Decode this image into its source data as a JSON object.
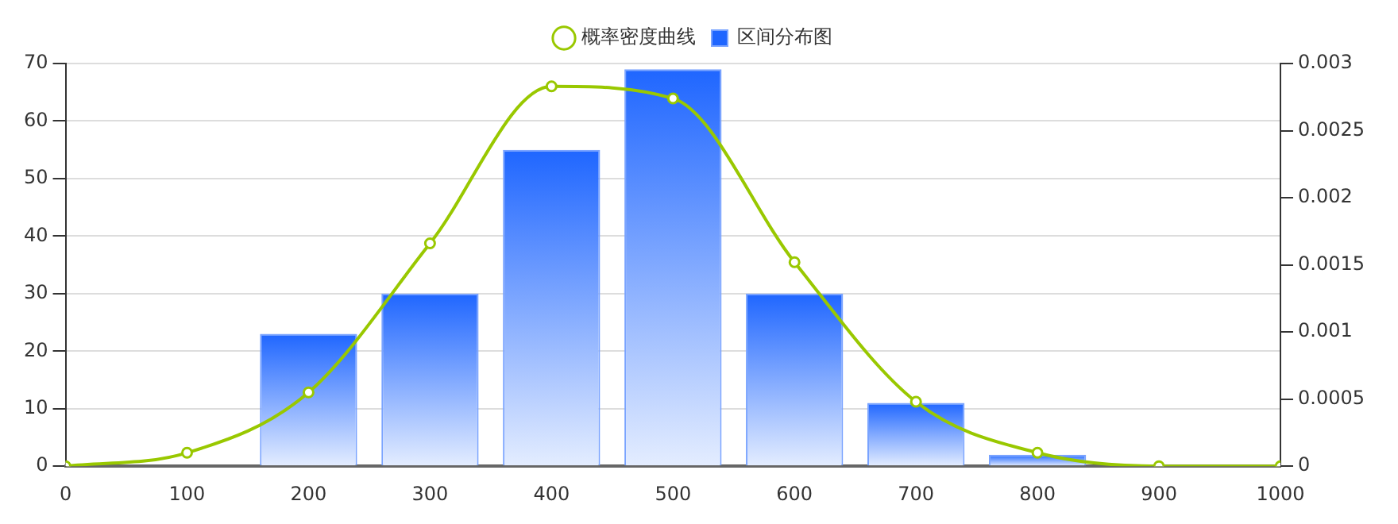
{
  "chart_data": {
    "type": "bar",
    "xlim": [
      0,
      1000
    ],
    "xticks": [
      0,
      100,
      200,
      300,
      400,
      500,
      600,
      700,
      800,
      900,
      1000
    ],
    "ylim": [
      0,
      70
    ],
    "yticks": [
      0,
      10,
      20,
      30,
      40,
      50,
      60,
      70
    ],
    "y2lim": [
      0,
      0.003
    ],
    "y2ticks": [
      0,
      0.0005,
      0.001,
      0.0015,
      0.002,
      0.0025,
      0.003
    ],
    "grid": "y",
    "legend": "top",
    "series": [
      {
        "name": "概率密度曲线",
        "type": "line",
        "axis": "y2",
        "color": "#99c800",
        "marker": "circle",
        "x": [
          0,
          100,
          200,
          300,
          400,
          500,
          600,
          700,
          800,
          900,
          1000
        ],
        "values": [
          0,
          0.0001,
          0.00055,
          0.00166,
          0.00283,
          0.00274,
          0.00152,
          0.00048,
          0.0001,
          0,
          0
        ]
      },
      {
        "name": "区间分布图",
        "color": "#1f66ff",
        "x": [
          200,
          300,
          400,
          500,
          600,
          700,
          800
        ],
        "values": [
          23,
          30,
          55,
          69,
          30,
          11,
          2
        ]
      }
    ]
  }
}
